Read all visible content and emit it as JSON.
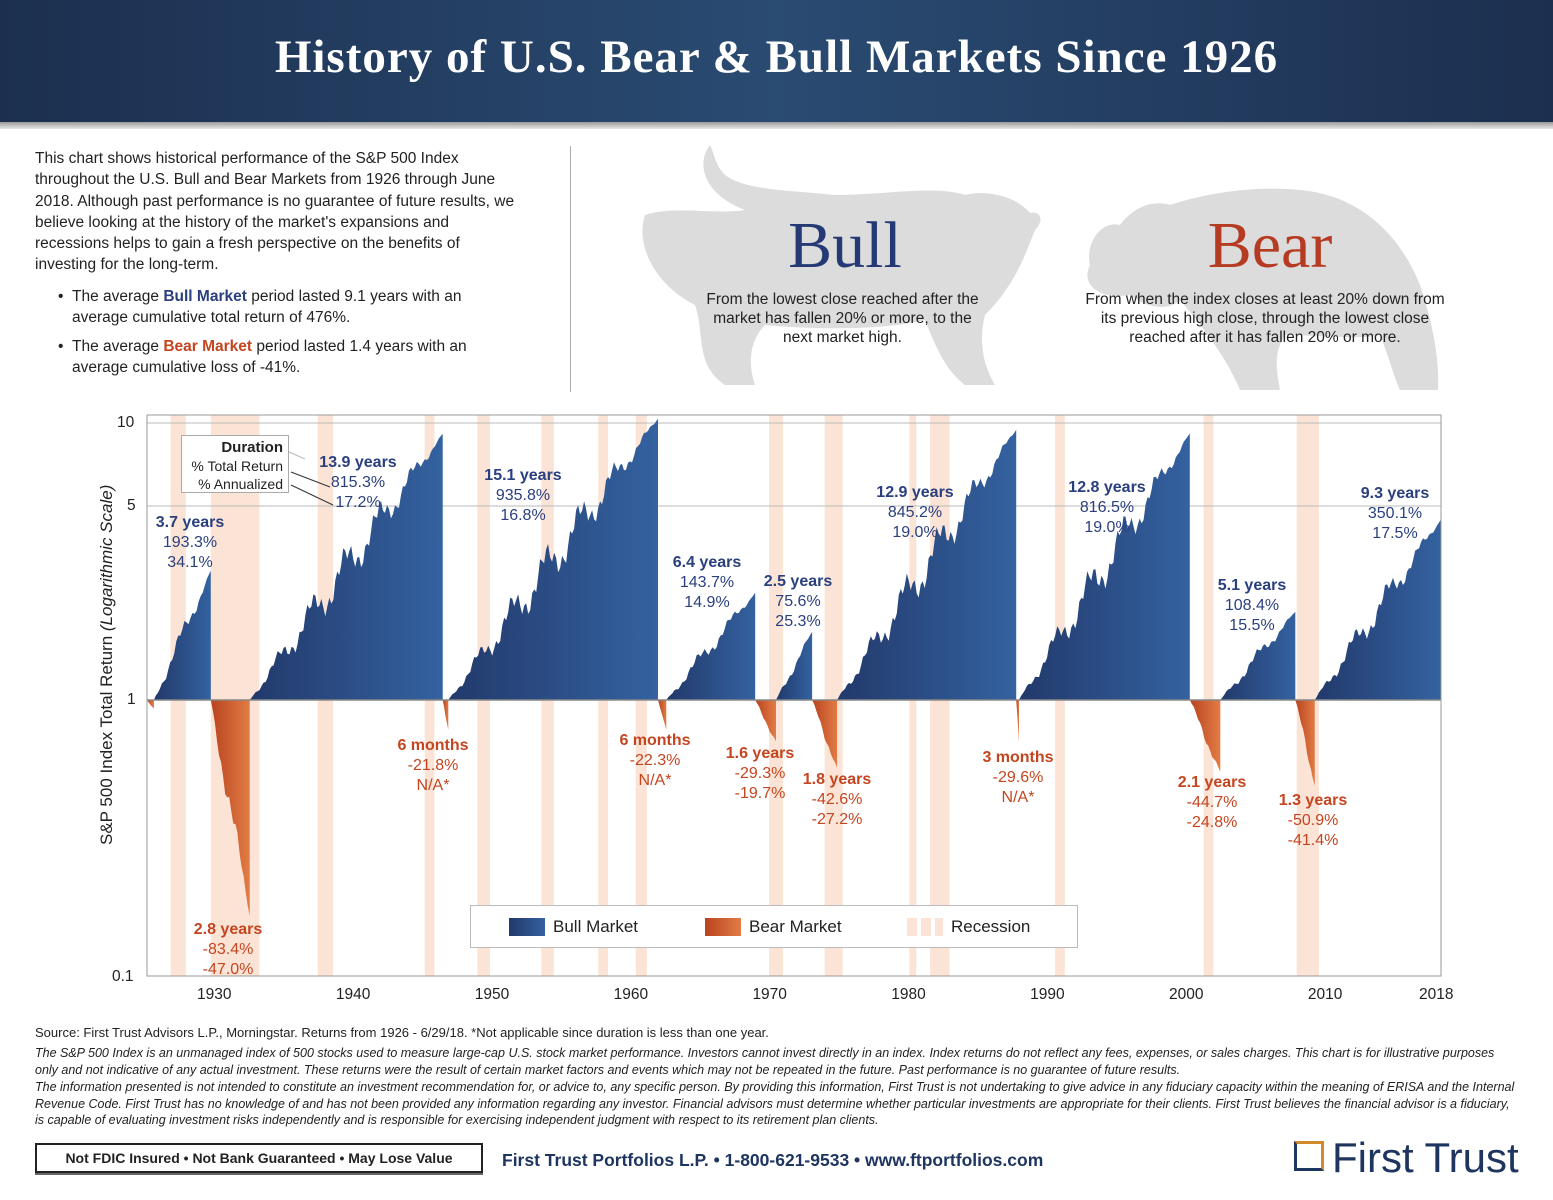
{
  "header": {
    "title": "History of U.S. Bear & Bull Markets Since 1926"
  },
  "intro": {
    "paragraph": "This chart shows historical performance of the S&P 500 Index throughout the U.S. Bull and Bear Markets from 1926 through June 2018. Although past performance is no guarantee of future results, we believe looking at the history of the market's expansions and recessions helps to gain a fresh perspective on the benefits of investing for the long-term.",
    "bullet1_pre": "The average ",
    "bullet1_term": "Bull Market",
    "bullet1_post": " period lasted 9.1 years with an average cumulative total return of 476%.",
    "bullet2_pre": "The average ",
    "bullet2_term": "Bear Market",
    "bullet2_post": " period lasted 1.4 years with an average cumulative loss of -41%."
  },
  "definitions": {
    "bull_title": "Bull",
    "bull_text": "From the lowest close reached after the market has fallen 20% or more, to the next market high.",
    "bear_title": "Bear",
    "bear_text": "From when the index closes at least 20% down from its previous high close, through the lowest close reached after it has fallen 20% or more."
  },
  "colors": {
    "bull": "#2a4a82",
    "bear": "#cc5528",
    "recession": "#fbe4d5",
    "bull_text": "#2a3f7e",
    "bear_text": "#c4451f",
    "header": "#1f3659"
  },
  "chart_data": {
    "type": "area",
    "ylabel": "S&P 500 Index Total Return",
    "ylabel_note": "(Logarithmic Scale)",
    "yscale": "log",
    "ylim": [
      0.1,
      11
    ],
    "yticks": [
      "0.1",
      "1",
      "5",
      "10"
    ],
    "xlim": [
      1925.1,
      2018.3
    ],
    "xticks": [
      "1930",
      "1940",
      "1950",
      "1960",
      "1970",
      "1980",
      "1990",
      "2000",
      "2010",
      "2018"
    ],
    "grid": "horizontal at 5 and 10",
    "key": {
      "line1": "Duration",
      "line2": "% Total Return",
      "line3": "% Annualized"
    },
    "legend": {
      "bull": "Bull Market",
      "bear": "Bear Market",
      "recession": "Recession",
      "placement": "bottom-center"
    },
    "recessions": [
      [
        1926.8,
        1927.9
      ],
      [
        1929.7,
        1933.2
      ],
      [
        1937.4,
        1938.5
      ],
      [
        1945.1,
        1945.8
      ],
      [
        1948.9,
        1949.8
      ],
      [
        1953.5,
        1954.4
      ],
      [
        1957.6,
        1958.3
      ],
      [
        1960.3,
        1961.1
      ],
      [
        1969.9,
        1970.9
      ],
      [
        1973.9,
        1975.2
      ],
      [
        1980.0,
        1980.5
      ],
      [
        1981.5,
        1982.9
      ],
      [
        1990.5,
        1991.2
      ],
      [
        2001.2,
        2001.9
      ],
      [
        2007.9,
        2009.5
      ]
    ],
    "markets": [
      {
        "type": "bear",
        "start": 1925.1,
        "end": 1925.6,
        "value": 0.93
      },
      {
        "type": "bull",
        "start": 1925.6,
        "end": 1929.7,
        "value": 2.93,
        "duration": "3.7 years",
        "total": "193.3%",
        "annualized": "34.1%"
      },
      {
        "type": "bear",
        "start": 1929.7,
        "end": 1932.5,
        "value": 0.166,
        "duration": "2.8 years",
        "total": "-83.4%",
        "annualized": "-47.0%"
      },
      {
        "type": "bull",
        "start": 1932.5,
        "end": 1946.4,
        "value": 9.15,
        "duration": "13.9 years",
        "total": "815.3%",
        "annualized": "17.2%"
      },
      {
        "type": "bear",
        "start": 1946.4,
        "end": 1946.8,
        "value": 0.78,
        "duration": "6 months",
        "total": "-21.8%",
        "annualized": "N/A*"
      },
      {
        "type": "bull",
        "start": 1946.8,
        "end": 1961.9,
        "value": 10.36,
        "duration": "15.1 years",
        "total": "935.8%",
        "annualized": "16.8%"
      },
      {
        "type": "bear",
        "start": 1961.9,
        "end": 1962.5,
        "value": 0.78,
        "duration": "6 months",
        "total": "-22.3%",
        "annualized": "N/A*"
      },
      {
        "type": "bull",
        "start": 1962.5,
        "end": 1968.9,
        "value": 2.44,
        "duration": "6.4 years",
        "total": "143.7%",
        "annualized": "14.9%"
      },
      {
        "type": "bear",
        "start": 1968.9,
        "end": 1970.4,
        "value": 0.71,
        "duration": "1.6 years",
        "total": "-29.3%",
        "annualized": "-19.7%"
      },
      {
        "type": "bull",
        "start": 1970.4,
        "end": 1973.0,
        "value": 1.76,
        "duration": "2.5 years",
        "total": "75.6%",
        "annualized": "25.3%"
      },
      {
        "type": "bear",
        "start": 1973.0,
        "end": 1974.8,
        "value": 0.57,
        "duration": "1.8 years",
        "total": "-42.6%",
        "annualized": "-27.2%"
      },
      {
        "type": "bull",
        "start": 1974.8,
        "end": 1987.7,
        "value": 9.45,
        "duration": "12.9 years",
        "total": "845.2%",
        "annualized": "19.0%"
      },
      {
        "type": "bear",
        "start": 1987.7,
        "end": 1987.9,
        "value": 0.7,
        "duration": "3 months",
        "total": "-29.6%",
        "annualized": "N/A*"
      },
      {
        "type": "bull",
        "start": 1987.9,
        "end": 2000.2,
        "value": 9.17,
        "duration": "12.8 years",
        "total": "816.5%",
        "annualized": "19.0%"
      },
      {
        "type": "bear",
        "start": 2000.2,
        "end": 2002.4,
        "value": 0.55,
        "duration": "2.1 years",
        "total": "-44.7%",
        "annualized": "-24.8%"
      },
      {
        "type": "bull",
        "start": 2002.4,
        "end": 2007.8,
        "value": 2.08,
        "duration": "5.1 years",
        "total": "108.4%",
        "annualized": "15.5%"
      },
      {
        "type": "bear",
        "start": 2007.8,
        "end": 2009.2,
        "value": 0.49,
        "duration": "1.3 years",
        "total": "-50.9%",
        "annualized": "-41.4%"
      },
      {
        "type": "bull",
        "start": 2009.2,
        "end": 2018.3,
        "value": 4.5,
        "duration": "9.3 years",
        "total": "350.1%",
        "annualized": "17.5%"
      }
    ]
  },
  "footer": {
    "source": "Source: First Trust Advisors L.P., Morningstar. Returns from 1926 - 6/29/18.  *Not applicable since duration is less than one year.",
    "disclaimer1": "The S&P 500 Index is an unmanaged index of 500 stocks used to measure large-cap U.S. stock market performance. Investors cannot invest directly in an index. Index returns do not reflect any fees, expenses, or sales charges. This chart is for illustrative purposes only and not indicative of any actual investment. These returns were the result of certain market factors and events which may not be repeated in the future. Past performance is no guarantee of future results.",
    "disclaimer2": "The information presented is not intended to constitute an investment recommendation for, or advice to, any specific person. By providing this information, First Trust is not undertaking to give advice in any fiduciary capacity within the meaning of ERISA and the Internal Revenue Code. First Trust has no knowledge of and has not been provided any information regarding any investor. Financial advisors must determine whether particular investments are appropriate for their clients. First Trust believes the financial advisor is a fiduciary, is capable of evaluating investment risks independently and is responsible for exercising independent judgment with respect to its retirement plan clients.",
    "fdic": "Not FDIC Insured • Not Bank Guaranteed • May Lose Value",
    "contact": "First Trust Portfolios L.P. • 1-800-621-9533 • www.ftportfolios.com",
    "logo": "First Trust"
  }
}
